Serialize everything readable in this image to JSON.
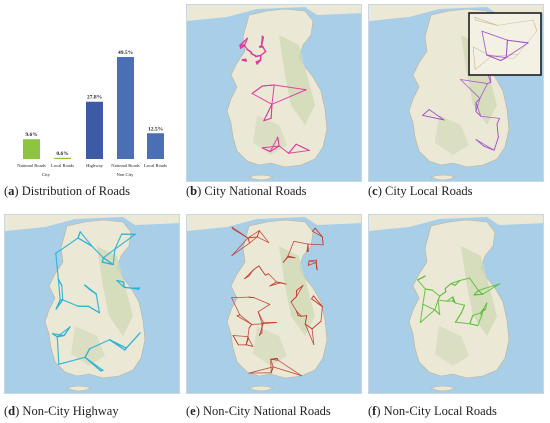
{
  "figure": {
    "panels": [
      {
        "letter": "a",
        "title": "Distribution of Roads"
      },
      {
        "letter": "b",
        "title": "City National Roads"
      },
      {
        "letter": "c",
        "title": "City Local Roads"
      },
      {
        "letter": "d",
        "title": "Non-City Highway"
      },
      {
        "letter": "e",
        "title": "Non-City National Roads"
      },
      {
        "letter": "f",
        "title": "Non-City Local Roads"
      }
    ]
  },
  "colors": {
    "sea": "#a9cfe8",
    "land": "#ece8d6",
    "mountain": "#cfd9b5",
    "city_national": "#e0349a",
    "city_local": "#a052c8",
    "highway": "#2bb3d6",
    "nc_national": "#c0392b",
    "nc_local": "#5cbf3a",
    "bar_city_national": "#8cc63f",
    "bar_non_city": "#4a6fb5",
    "bar_highway": "#3c5aa8"
  },
  "chart_data": {
    "type": "bar",
    "title": "",
    "xlabel": "",
    "ylabel": "",
    "ylim": [
      0,
      50
    ],
    "categories": [
      "National Roads",
      "Local Roads",
      "Highway",
      "National Roads",
      "Local Roads"
    ],
    "groups": [
      "City",
      "City",
      "Non City",
      "Non City",
      "Non City"
    ],
    "group_labels": [
      "City",
      "Non City"
    ],
    "values": [
      9.6,
      0.6,
      27.8,
      49.5,
      12.5
    ],
    "value_labels": [
      "9.6%",
      "0.6%",
      "27.8%",
      "49.5%",
      "12.5%"
    ],
    "bar_colors": [
      "#8cc63f",
      "#8cc63f",
      "#3c5aa8",
      "#4a6fb5",
      "#4a6fb5"
    ]
  }
}
